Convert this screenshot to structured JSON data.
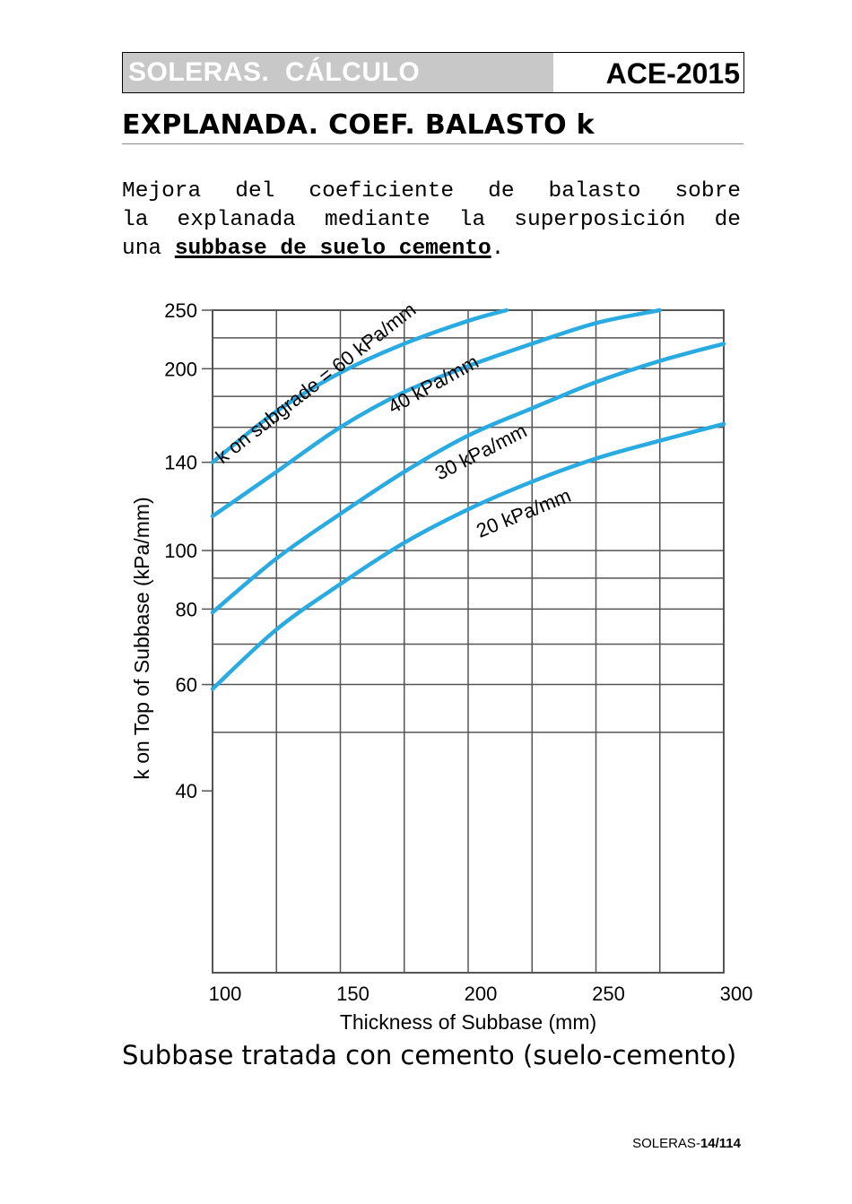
{
  "header": {
    "left": "SOLERAS.  CÁLCULO",
    "right": "ACE-2015"
  },
  "section_title": "EXPLANADA. COEF. BALASTO k",
  "intro": {
    "line1": "Mejora del coeficiente de balasto sobre",
    "line2": "la explanada mediante la superposición de",
    "prefix": "una ",
    "emphasis": "subbase de suelo cemento",
    "suffix": "."
  },
  "chart_data": {
    "type": "line",
    "xlabel": "Thickness of Subbase (mm)",
    "ylabel": "k on Top of Subbase (kPa/mm)",
    "xlim": [
      100,
      300
    ],
    "ylim": [
      20,
      250
    ],
    "y_scale": "log",
    "grid": true,
    "x_ticks": [
      "100",
      "150",
      "200",
      "250",
      "300"
    ],
    "y_ticks": [
      "250",
      "200",
      "140",
      "100",
      "80",
      "60",
      "40"
    ],
    "series": [
      {
        "name": "k on subgrade = 60 kPa/mm",
        "x": [
          100,
          125,
          150,
          175,
          200,
          215
        ],
        "y": [
          140,
          170,
          197,
          220,
          240,
          250
        ]
      },
      {
        "name": "40 kPa/mm",
        "x": [
          100,
          125,
          150,
          175,
          200,
          225,
          250,
          275
        ],
        "y": [
          114,
          135,
          160,
          183,
          202,
          220,
          238,
          250
        ]
      },
      {
        "name": "30 kPa/mm",
        "x": [
          100,
          125,
          150,
          175,
          200,
          225,
          250,
          275,
          300
        ],
        "y": [
          79,
          97,
          115,
          135,
          155,
          172,
          190,
          206,
          220
        ]
      },
      {
        "name": "20 kPa/mm",
        "x": [
          100,
          125,
          150,
          175,
          200,
          225,
          250,
          275,
          300
        ],
        "y": [
          59,
          74,
          88,
          103,
          117,
          130,
          142,
          152,
          162
        ]
      }
    ],
    "line_color": "#29abe2"
  },
  "caption": "Subbase tratada con cemento (suelo-cemento)",
  "footer": {
    "prefix": "SOLERAS-",
    "page": "14/114"
  }
}
